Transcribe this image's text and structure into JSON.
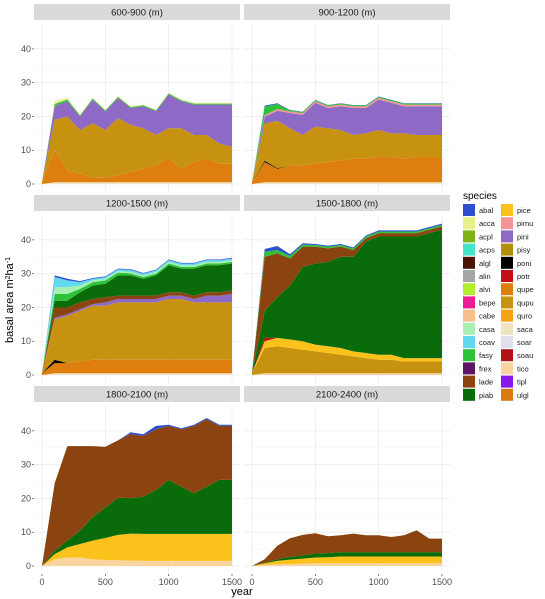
{
  "chart_data": {
    "type": "area",
    "stacked": true,
    "xlabel": "year",
    "ylabel_main": "basal area m",
    "ylabel_sup1": "2",
    "ylabel_mid": "ha",
    "ylabel_sup2": "-1",
    "xlim": [
      0,
      1500
    ],
    "ylim": [
      0,
      45
    ],
    "x_ticks": [
      0,
      500,
      1000,
      1500
    ],
    "y_ticks": [
      0,
      10,
      20,
      30,
      40
    ],
    "x": [
      0,
      100,
      200,
      300,
      400,
      500,
      600,
      700,
      800,
      900,
      1000,
      1100,
      1200,
      1300,
      1400,
      1500
    ],
    "grid": true,
    "legend": {
      "title": "species",
      "position": "right",
      "entries": [
        {
          "key": "abal",
          "color": "#2D4FCF"
        },
        {
          "key": "acca",
          "color": "#E8F08A"
        },
        {
          "key": "acpl",
          "color": "#7FB317"
        },
        {
          "key": "acps",
          "color": "#45E3C8"
        },
        {
          "key": "algl",
          "color": "#4A1406"
        },
        {
          "key": "alin",
          "color": "#A6A6A6"
        },
        {
          "key": "alvi",
          "color": "#B2EE2E"
        },
        {
          "key": "bepe",
          "color": "#F01C97"
        },
        {
          "key": "cabe",
          "color": "#F6C18E"
        },
        {
          "key": "casa",
          "color": "#A9F0B0"
        },
        {
          "key": "coav",
          "color": "#60D8EE"
        },
        {
          "key": "fasy",
          "color": "#2EC23A"
        },
        {
          "key": "frex",
          "color": "#5C1466"
        },
        {
          "key": "lade",
          "color": "#8B4410"
        },
        {
          "key": "piab",
          "color": "#0A6B0A"
        },
        {
          "key": "pice",
          "color": "#FBC21C"
        },
        {
          "key": "pimu",
          "color": "#F59494"
        },
        {
          "key": "pini",
          "color": "#8E6AC6"
        },
        {
          "key": "pisy",
          "color": "#B28E0A"
        },
        {
          "key": "poni",
          "color": "#000000"
        },
        {
          "key": "potr",
          "color": "#C40E17"
        },
        {
          "key": "qupe",
          "color": "#DE7E0E"
        },
        {
          "key": "qupu",
          "color": "#C79210"
        },
        {
          "key": "quro",
          "color": "#F5A215"
        },
        {
          "key": "saca",
          "color": "#EFE3C2"
        },
        {
          "key": "soar",
          "color": "#E3DDF0"
        },
        {
          "key": "soau",
          "color": "#B0121A"
        },
        {
          "key": "tico",
          "color": "#F9D49E"
        },
        {
          "key": "tipl",
          "color": "#8B17EA"
        },
        {
          "key": "ulgl",
          "color": "#DC7A12"
        }
      ]
    },
    "panels": [
      {
        "title": "600-900 (m)",
        "series": [
          {
            "species": "saca",
            "values": [
              0,
              0.5,
              0.5,
              0.5,
              0.5,
              0.5,
              0.5,
              0.5,
              0.5,
              0.5,
              0.5,
              0.5,
              0.5,
              0.5,
              0.5,
              0.5
            ]
          },
          {
            "species": "qupe",
            "values": [
              0.5,
              9.5,
              3.5,
              2.5,
              1.5,
              1.5,
              2,
              3,
              4,
              5,
              7,
              4,
              6,
              7,
              5.5,
              5.5
            ]
          },
          {
            "species": "qupu",
            "values": [
              0,
              9,
              16,
              13,
              16,
              14,
              17,
              14,
              12,
              9,
              9,
              12,
              8,
              7,
              6,
              5
            ]
          },
          {
            "species": "pini",
            "values": [
              0,
              4,
              4.5,
              4,
              7,
              5.5,
              6,
              5,
              6.5,
              7,
              10,
              8,
              9,
              9,
              11.5,
              12.5
            ]
          },
          {
            "species": "fasy",
            "values": [
              0,
              0.7,
              0.5,
              0.3,
              0.3,
              0.3,
              0.3,
              0.3,
              0.3,
              0.3,
              0.3,
              0.3,
              0.3,
              0.3,
              0.3,
              0.3
            ]
          },
          {
            "species": "acca",
            "values": [
              0,
              0.8,
              0.5,
              0.2,
              0.2,
              0.2,
              0.2,
              0.2,
              0.2,
              0.2,
              0.2,
              0.2,
              0.2,
              0.2,
              0.2,
              0.2
            ]
          }
        ]
      },
      {
        "title": "900-1200 (m)",
        "series": [
          {
            "species": "saca",
            "values": [
              0,
              0.5,
              0.5,
              0.5,
              0.5,
              0.5,
              0.5,
              0.5,
              0.5,
              0.5,
              0.5,
              0.5,
              0.5,
              0.5,
              0.5,
              0.5
            ]
          },
          {
            "species": "qupe",
            "values": [
              0.5,
              6,
              4,
              5,
              5,
              5.5,
              6,
              6.5,
              7,
              7,
              7.5,
              7.5,
              7,
              7.5,
              7.5,
              7.5
            ]
          },
          {
            "species": "poni",
            "values": [
              0,
              0.4,
              0.2,
              0,
              0,
              0,
              0,
              0,
              0,
              0,
              0,
              0,
              0,
              0,
              0,
              0
            ]
          },
          {
            "species": "qupu",
            "values": [
              0,
              11,
              14,
              11,
              9,
              11,
              10,
              9,
              7,
              7.5,
              8,
              7,
              7.5,
              6.5,
              6.5,
              6.5
            ]
          },
          {
            "species": "pini",
            "values": [
              0,
              2,
              3,
              4.5,
              6,
              7,
              6,
              7,
              8,
              7.5,
              9,
              9,
              8,
              8.5,
              8.5,
              8.5
            ]
          },
          {
            "species": "pimu",
            "values": [
              0,
              0.5,
              0.5,
              0.5,
              0.5,
              0.5,
              0.5,
              0.5,
              0.5,
              0.5,
              0.5,
              0.5,
              0.5,
              0.5,
              0.5,
              0.5
            ]
          },
          {
            "species": "fasy",
            "values": [
              0,
              2.5,
              1.5,
              0.3,
              0.3,
              0.3,
              0.3,
              0.3,
              0.3,
              0.3,
              0.3,
              0.3,
              0.3,
              0.3,
              0.3,
              0.3
            ]
          },
          {
            "species": "abal",
            "values": [
              0,
              0.3,
              0.2,
              0.1,
              0.1,
              0.1,
              0.1,
              0.1,
              0.1,
              0.1,
              0.1,
              0.1,
              0.1,
              0.1,
              0.1,
              0.1
            ]
          }
        ]
      },
      {
        "title": "1200-1500 (m)",
        "series": [
          {
            "species": "saca",
            "values": [
              0,
              0.5,
              0.5,
              0.5,
              0.5,
              0.5,
              0.5,
              0.5,
              0.5,
              0.5,
              0.5,
              0.5,
              0.5,
              0.5,
              0.5,
              0.5
            ]
          },
          {
            "species": "qupe",
            "values": [
              0.5,
              3,
              3,
              3.5,
              4,
              4,
              4,
              4,
              4,
              4,
              4,
              4,
              4,
              4,
              4,
              4
            ]
          },
          {
            "species": "poni",
            "values": [
              0,
              1,
              0,
              0,
              0,
              0,
              0,
              0,
              0,
              0,
              0,
              0,
              0,
              0,
              0,
              0
            ]
          },
          {
            "species": "qupu",
            "values": [
              0,
              12,
              14,
              15,
              16,
              16,
              17,
              17,
              17,
              17,
              18,
              18,
              17,
              17,
              17,
              17
            ]
          },
          {
            "species": "pini",
            "values": [
              0,
              0.5,
              0.5,
              0.5,
              0.5,
              1,
              1,
              1,
              1,
              1,
              1,
              1,
              1,
              2,
              2,
              2.5
            ]
          },
          {
            "species": "lade",
            "values": [
              0,
              3,
              2,
              2,
              1.5,
              1.5,
              1,
              1,
              1,
              1,
              1,
              1,
              1,
              1,
              1,
              1
            ]
          },
          {
            "species": "piab",
            "values": [
              0,
              2,
              2,
              3,
              4,
              4,
              6,
              6,
              5,
              6,
              8,
              7,
              8,
              8,
              8,
              8
            ]
          },
          {
            "species": "fasy",
            "values": [
              0,
              2,
              2,
              1,
              1,
              1,
              0.8,
              0.6,
              0.5,
              0.5,
              0.5,
              0.5,
              0.5,
              0.5,
              0.5,
              0.5
            ]
          },
          {
            "species": "casa",
            "values": [
              0,
              2,
              2,
              1,
              0.5,
              0.5,
              0.5,
              0.5,
              0.5,
              0.5,
              0.5,
              0.5,
              0.5,
              0.5,
              0.5,
              0.5
            ]
          },
          {
            "species": "coav",
            "values": [
              0,
              3,
              2,
              1,
              0.5,
              0.5,
              0.5,
              0.5,
              0.5,
              0.5,
              0.5,
              0.5,
              0.5,
              0.5,
              0.5,
              0.5
            ]
          },
          {
            "species": "abal",
            "values": [
              0,
              0.5,
              0.5,
              0.3,
              0.2,
              0.2,
              0.2,
              0.2,
              0.2,
              0.2,
              0.2,
              0.2,
              0.2,
              0.2,
              0.2,
              0.2
            ]
          }
        ]
      },
      {
        "title": "1500-1800 (m)",
        "series": [
          {
            "species": "tico",
            "values": [
              0,
              0.5,
              0.5,
              0.5,
              0.5,
              0.5,
              0.5,
              0.5,
              0.5,
              0.5,
              0.5,
              0.5,
              0.5,
              0.5,
              0.5,
              0.5
            ]
          },
          {
            "species": "qupu",
            "values": [
              0.5,
              7.5,
              8,
              7.5,
              7,
              6.5,
              6,
              5.5,
              5,
              4.5,
              4,
              4,
              3.5,
              3.5,
              3.5,
              3.5
            ]
          },
          {
            "species": "pice",
            "values": [
              0,
              2,
              2.5,
              2.5,
              2.5,
              2,
              2,
              2,
              1.5,
              1.5,
              1.5,
              1.5,
              1,
              1,
              1,
              1
            ]
          },
          {
            "species": "potr",
            "values": [
              0,
              1,
              0,
              0,
              0,
              0,
              0,
              0,
              0,
              0,
              0,
              0,
              0,
              0,
              0,
              0
            ]
          },
          {
            "species": "piab",
            "values": [
              0,
              8,
              12,
              16,
              22,
              24,
              25,
              27,
              28,
              33,
              35,
              35,
              36,
              36,
              37,
              38
            ]
          },
          {
            "species": "lade",
            "values": [
              0,
              16,
              13,
              8,
              6,
              5,
              4,
              3,
              2,
              1,
              1,
              1,
              1,
              1,
              1,
              1
            ]
          },
          {
            "species": "fasy",
            "values": [
              0,
              1.5,
              1,
              0.8,
              0.6,
              0.5,
              0.5,
              0.5,
              0.5,
              0.5,
              0.5,
              0.5,
              0.5,
              0.5,
              0.5,
              0.5
            ]
          },
          {
            "species": "abal",
            "values": [
              0,
              0.8,
              1.2,
              0.5,
              0.4,
              0.3,
              0.3,
              0.3,
              0.3,
              0.3,
              0.3,
              0.3,
              0.3,
              0.3,
              0.3,
              0.3
            ]
          }
        ]
      },
      {
        "title": "1800-2100 (m)",
        "series": [
          {
            "species": "tico",
            "values": [
              0,
              2,
              2.5,
              2.5,
              2,
              1.8,
              1.7,
              1.6,
              1.5,
              1.5,
              1.5,
              1.5,
              1.5,
              1.5,
              1.5,
              1.5
            ]
          },
          {
            "species": "pice",
            "values": [
              0,
              1.5,
              3,
              4,
              5.5,
              6.5,
              7.5,
              8,
              8,
              8,
              8,
              8,
              8,
              8,
              8,
              8
            ]
          },
          {
            "species": "piab",
            "values": [
              0,
              1,
              2,
              4,
              7,
              9,
              11,
              10.5,
              11,
              13,
              16,
              14,
              12,
              14,
              16,
              16
            ]
          },
          {
            "species": "lade",
            "values": [
              0,
              20,
              28,
              25,
              21,
              18,
              17,
              19,
              18,
              18,
              16,
              17,
              20,
              20,
              16,
              16
            ]
          },
          {
            "species": "abal",
            "values": [
              0,
              0,
              0,
              0,
              0,
              0,
              0,
              0.5,
              0.5,
              1,
              0.3,
              0.3,
              0.3,
              0.3,
              0.3,
              0.3
            ]
          }
        ]
      },
      {
        "title": "2100-2400 (m)",
        "series": [
          {
            "species": "tico",
            "values": [
              0,
              0.3,
              0.5,
              0.6,
              0.7,
              0.8,
              0.8,
              0.8,
              0.8,
              0.8,
              0.8,
              0.8,
              0.8,
              0.8,
              0.8,
              0.8
            ]
          },
          {
            "species": "pice",
            "values": [
              0,
              0.5,
              1,
              1.3,
              1.5,
              1.7,
              1.8,
              2,
              2,
              2,
              2,
              2,
              2,
              2,
              2,
              2
            ]
          },
          {
            "species": "piab",
            "values": [
              0,
              0.2,
              0.5,
              0.8,
              1,
              1.2,
              1.2,
              1.3,
              1.3,
              1.3,
              1.3,
              1.3,
              1.3,
              1.3,
              1.3,
              1.3
            ]
          },
          {
            "species": "lade",
            "values": [
              0,
              1,
              4,
              5.5,
              6,
              6,
              5,
              5,
              5.5,
              5,
              5,
              4.5,
              5,
              6.5,
              4,
              4
            ]
          }
        ]
      }
    ]
  }
}
